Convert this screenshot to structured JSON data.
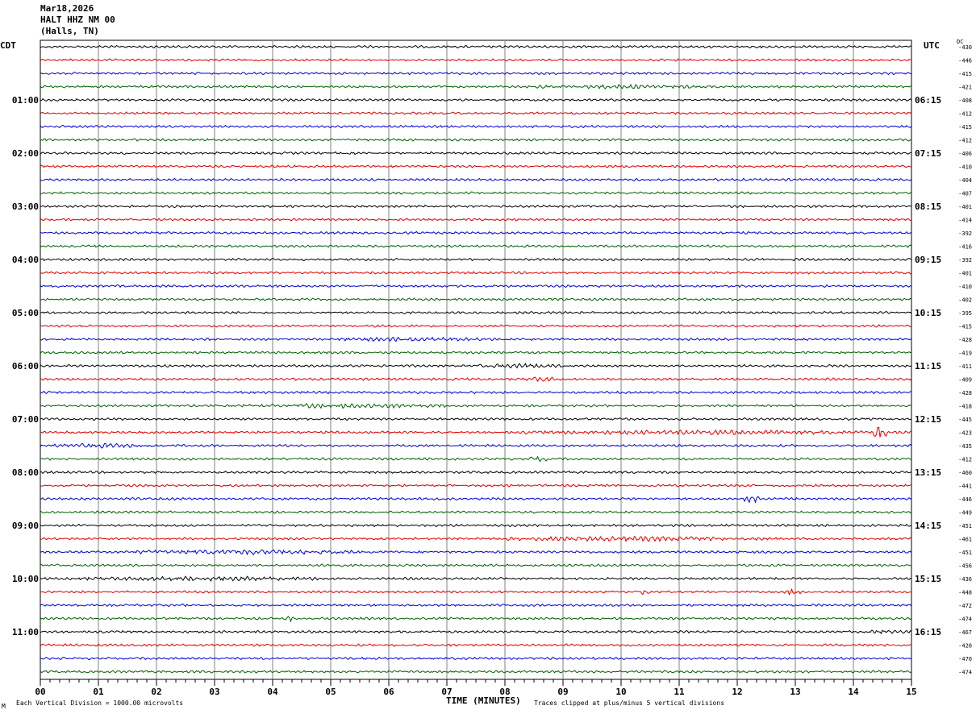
{
  "header": {
    "date": "Mar18,2026",
    "station": "HALT HHZ NM 00",
    "location": "(Halls, TN)"
  },
  "left_zone_label": "CDT",
  "right_zone_label": "UTC",
  "dc_label": "DC",
  "footer": {
    "scale_note": "Each Vertical Division = 1000.00 microvolts",
    "clip_note": "Traces clipped at plus/minus 5 vertical divisions",
    "corner_mark": "M"
  },
  "colors": {
    "trace_cycle": [
      "#000000",
      "#e00000",
      "#0000d0",
      "#006000"
    ],
    "grid": "#808080"
  },
  "chart_data": {
    "type": "line",
    "title": "",
    "xlabel": "TIME (MINUTES)",
    "xlim": [
      0,
      15
    ],
    "x_ticks": [
      "00",
      "01",
      "02",
      "03",
      "04",
      "05",
      "06",
      "07",
      "08",
      "09",
      "10",
      "11",
      "12",
      "13",
      "14",
      "15"
    ],
    "left_time_labels": [
      {
        "row": 4,
        "text": "01:00"
      },
      {
        "row": 8,
        "text": "02:00"
      },
      {
        "row": 12,
        "text": "03:00"
      },
      {
        "row": 16,
        "text": "04:00"
      },
      {
        "row": 20,
        "text": "05:00"
      },
      {
        "row": 24,
        "text": "06:00"
      },
      {
        "row": 28,
        "text": "07:00"
      },
      {
        "row": 32,
        "text": "08:00"
      },
      {
        "row": 36,
        "text": "09:00"
      },
      {
        "row": 40,
        "text": "10:00"
      },
      {
        "row": 44,
        "text": "11:00"
      }
    ],
    "right_time_labels": [
      {
        "row": 4,
        "text": "06:15"
      },
      {
        "row": 8,
        "text": "07:15"
      },
      {
        "row": 12,
        "text": "08:15"
      },
      {
        "row": 16,
        "text": "09:15"
      },
      {
        "row": 20,
        "text": "10:15"
      },
      {
        "row": 24,
        "text": "11:15"
      },
      {
        "row": 28,
        "text": "12:15"
      },
      {
        "row": 32,
        "text": "13:15"
      },
      {
        "row": 36,
        "text": "14:15"
      },
      {
        "row": 40,
        "text": "15:15"
      },
      {
        "row": 44,
        "text": "16:15"
      }
    ],
    "dc_offsets": [
      "-430",
      "-446",
      "-415",
      "-421",
      "-408",
      "-412",
      "-415",
      "-412",
      "-406",
      "-410",
      "-404",
      "-407",
      "-401",
      "-414",
      "-392",
      "-416",
      "-392",
      "-401",
      "-410",
      "-402",
      "-395",
      "-415",
      "-428",
      "-419",
      "-411",
      "-409",
      "-428",
      "-418",
      "-445",
      "-423",
      "-435",
      "-412",
      "-460",
      "-441",
      "-446",
      "-449",
      "-451",
      "-461",
      "-451",
      "-456",
      "-436",
      "-448",
      "-472",
      "-474",
      "-467",
      "-420",
      "-470",
      "-474"
    ],
    "trace_count": 48,
    "events": [
      {
        "row": 3,
        "x_start": 8.2,
        "x_end": 11.8,
        "amp": 1.4
      },
      {
        "row": 22,
        "x_start": 5.0,
        "x_end": 8.0,
        "amp": 1.5
      },
      {
        "row": 24,
        "x_start": 7.5,
        "x_end": 9.0,
        "amp": 1.6
      },
      {
        "row": 25,
        "x_start": 8.3,
        "x_end": 8.9,
        "amp": 1.8
      },
      {
        "row": 27,
        "x_start": 3.5,
        "x_end": 7.0,
        "amp": 1.6
      },
      {
        "row": 29,
        "x_start": 8.3,
        "x_end": 15.0,
        "amp": 1.6
      },
      {
        "row": 29,
        "x_start": 14.35,
        "x_end": 14.6,
        "amp": 5.0
      },
      {
        "row": 30,
        "x_start": 0.0,
        "x_end": 2.0,
        "amp": 1.6
      },
      {
        "row": 31,
        "x_start": 8.3,
        "x_end": 8.9,
        "amp": 1.6
      },
      {
        "row": 34,
        "x_start": 12.1,
        "x_end": 12.4,
        "amp": 2.8
      },
      {
        "row": 37,
        "x_start": 7.8,
        "x_end": 12.5,
        "amp": 1.7
      },
      {
        "row": 38,
        "x_start": 1.5,
        "x_end": 5.5,
        "amp": 1.8
      },
      {
        "row": 40,
        "x_start": 0.5,
        "x_end": 5.0,
        "amp": 1.6
      },
      {
        "row": 41,
        "x_start": 10.2,
        "x_end": 10.5,
        "amp": 2.0
      },
      {
        "row": 41,
        "x_start": 12.8,
        "x_end": 13.1,
        "amp": 2.0
      },
      {
        "row": 43,
        "x_start": 4.2,
        "x_end": 4.35,
        "amp": 3.0
      },
      {
        "row": 44,
        "x_start": 14.3,
        "x_end": 15.0,
        "amp": 1.6
      }
    ]
  }
}
